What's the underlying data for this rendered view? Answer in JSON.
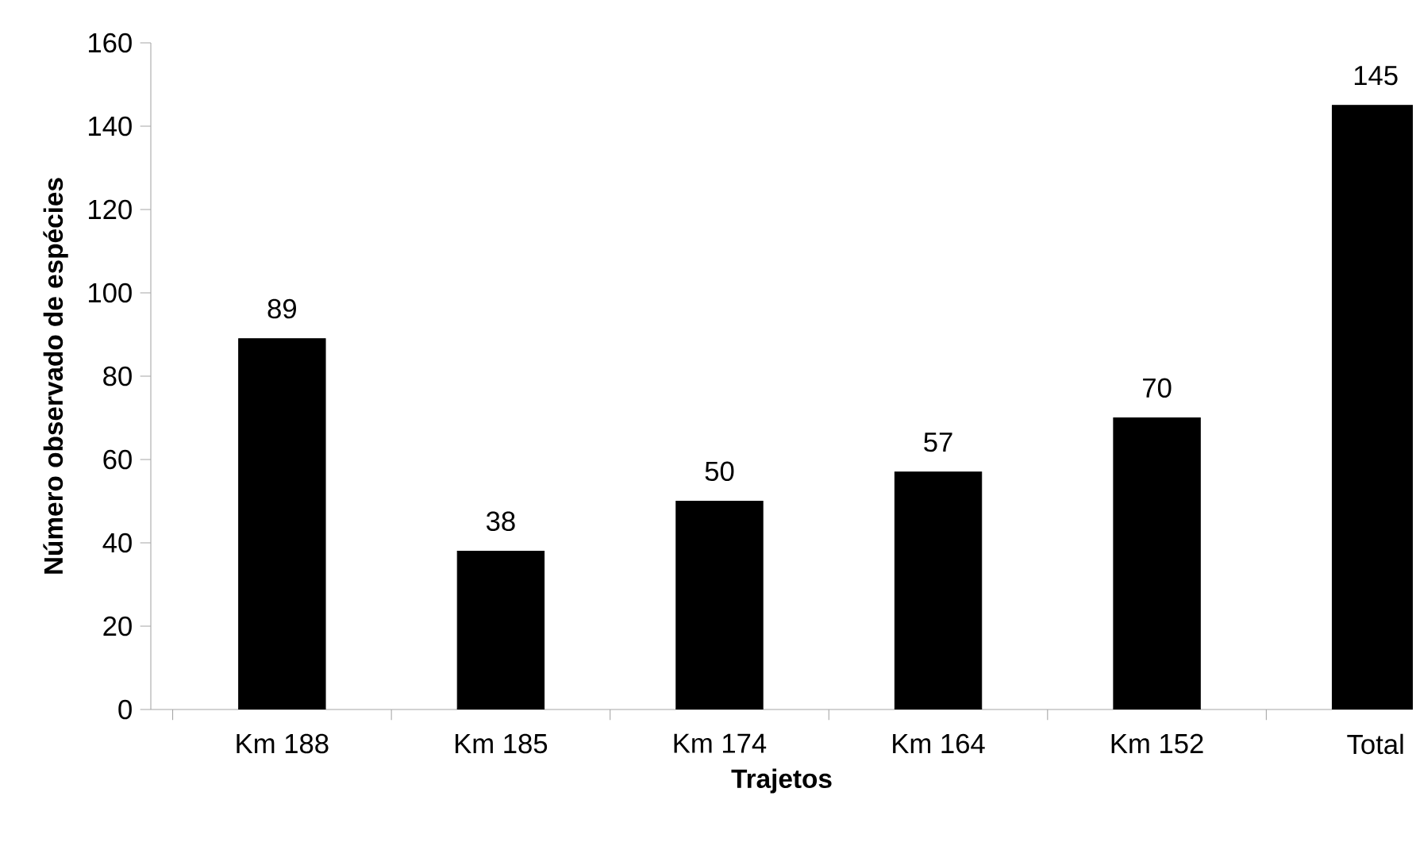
{
  "chart_data": {
    "type": "bar",
    "xlabel": "Trajetos",
    "ylabel": "Número observado de espécies",
    "categories": [
      "Km 188",
      "Km 185",
      "Km 174",
      "Km 164",
      "Km 152",
      "Total"
    ],
    "values": [
      89,
      38,
      50,
      57,
      70,
      145
    ],
    "color": "#000000",
    "ylim": [
      0,
      160
    ],
    "yticks": [
      0,
      20,
      40,
      60,
      80,
      100,
      120,
      140,
      160
    ],
    "data_labels": true
  }
}
